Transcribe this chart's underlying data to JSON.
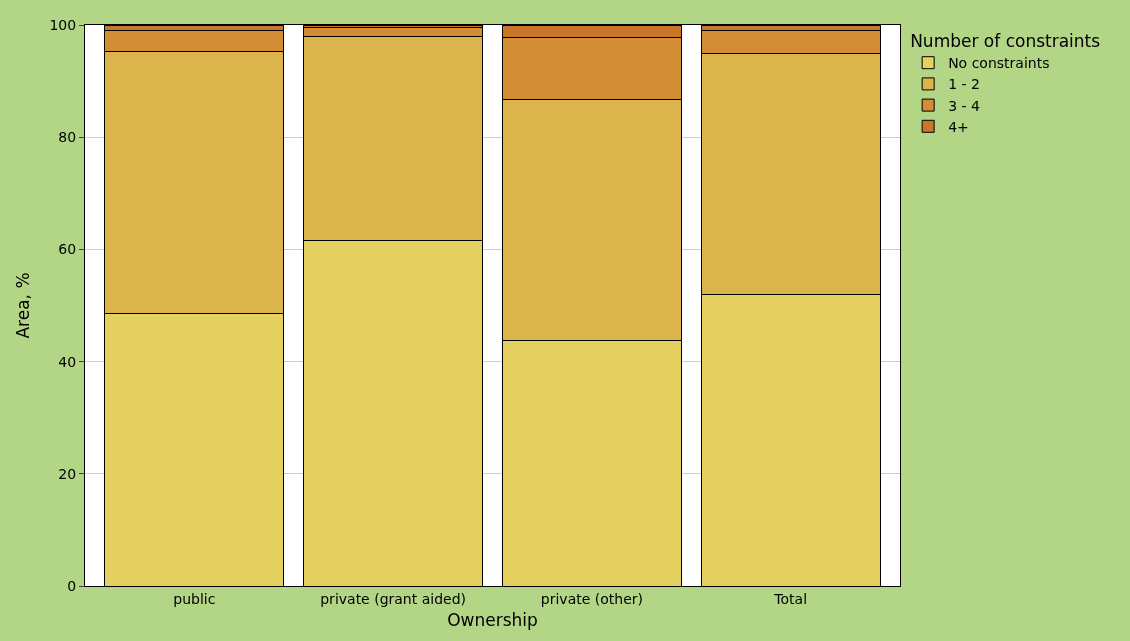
{
  "chart_data": {
    "type": "bar",
    "stacked": true,
    "xlabel": "Ownership",
    "ylabel": "Area, %",
    "legend_title": "Number of constraints",
    "legend": "top right",
    "grid": "y",
    "categories": [
      "public",
      "private (grant aided)",
      "private (other)",
      "Total"
    ],
    "ylim": [
      0,
      100
    ],
    "yticks": [
      0,
      20,
      40,
      60,
      80,
      100
    ],
    "series": [
      {
        "name": "No constraints",
        "color": "#e5d160",
        "values": [
          48.6,
          61.6,
          43.8,
          51.9
        ]
      },
      {
        "name": "1 - 2",
        "color": "#dbb54b",
        "values": [
          46.7,
          36.4,
          43.0,
          43.1
        ]
      },
      {
        "name": "3 - 4",
        "color": "#d28d35",
        "values": [
          3.8,
          1.6,
          11.0,
          4.1
        ]
      },
      {
        "name": "4+",
        "color": "#c97629",
        "values": [
          0.9,
          0.4,
          2.2,
          0.9
        ]
      }
    ]
  }
}
